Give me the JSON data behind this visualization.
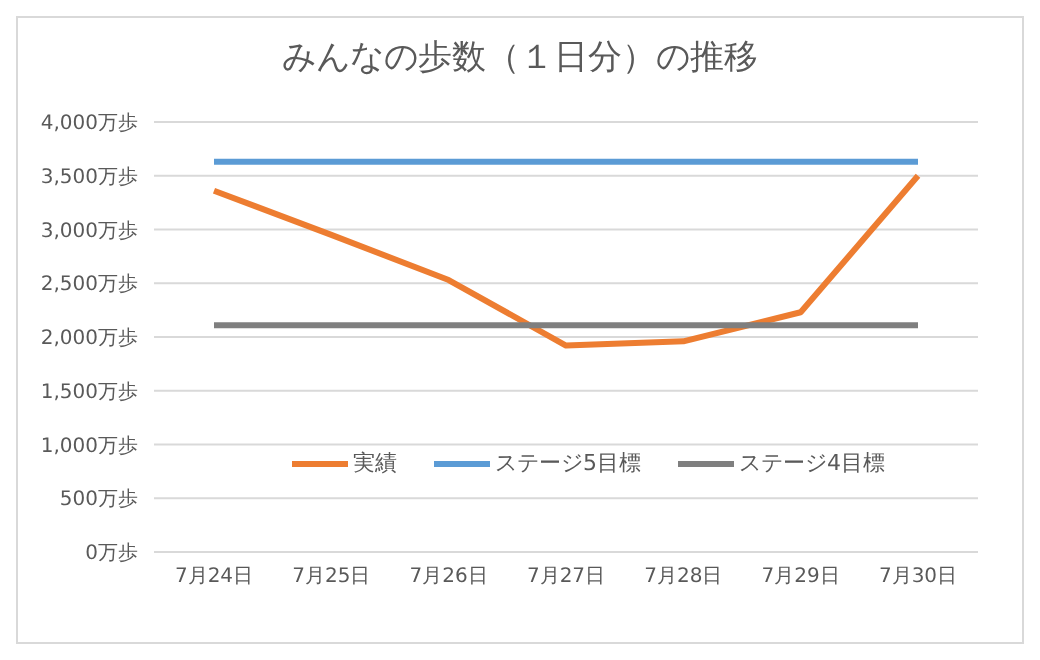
{
  "chart_data": {
    "type": "line",
    "title": "みんなの歩数（１日分）の推移",
    "categories": [
      "7月24日",
      "7月25日",
      "7月26日",
      "7月27日",
      "7月28日",
      "7月29日",
      "7月30日"
    ],
    "series": [
      {
        "name": "実績",
        "color": "#ed7d31",
        "values": [
          3360,
          2950,
          2530,
          1920,
          1960,
          2230,
          3500
        ]
      },
      {
        "name": "ステージ5目標",
        "color": "#5b9bd5",
        "values": [
          3630,
          3630,
          3630,
          3630,
          3630,
          3630,
          3630
        ]
      },
      {
        "name": "ステージ4目標",
        "color": "#7f7f7f",
        "values": [
          2110,
          2110,
          2110,
          2110,
          2110,
          2110,
          2110
        ]
      }
    ],
    "ylim": [
      0,
      4000
    ],
    "yticks": [
      {
        "value": 0,
        "label": "0万歩"
      },
      {
        "value": 500,
        "label": "500万歩"
      },
      {
        "value": 1000,
        "label": "1,000万歩"
      },
      {
        "value": 1500,
        "label": "1,500万歩"
      },
      {
        "value": 2000,
        "label": "2,000万歩"
      },
      {
        "value": 2500,
        "label": "2,500万歩"
      },
      {
        "value": 3000,
        "label": "3,000万歩"
      },
      {
        "value": 3500,
        "label": "3,500万歩"
      },
      {
        "value": 4000,
        "label": "4,000万歩"
      }
    ],
    "grid": "y",
    "legend": "bottom",
    "marker": "none",
    "line_style": "solid"
  }
}
